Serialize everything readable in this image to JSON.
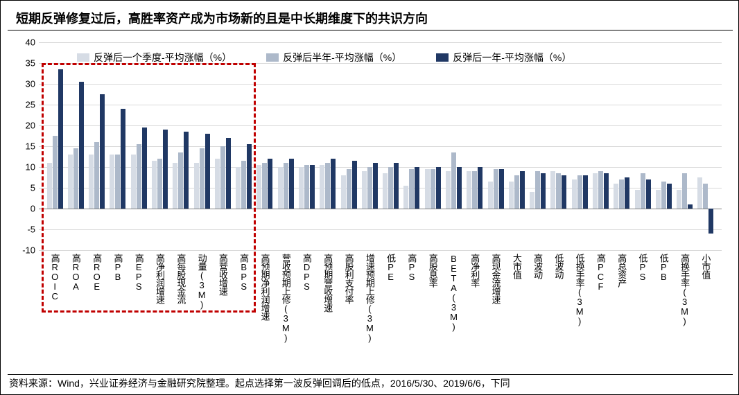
{
  "title": "短期反弹修复过后，高胜率资产成为市场新的且是中长期维度下的共识方向",
  "source": "资料来源：Wind，兴业证券经济与金融研究院整理。起点选择第一波反弹回调后的低点，2016/5/30、2019/6/6，下同",
  "chart": {
    "type": "bar",
    "ylim": [
      -10,
      40
    ],
    "ytick_step": 5,
    "grid_color": "#d9d9d9",
    "background_color": "#ffffff",
    "highlight": {
      "start_idx": 0,
      "end_idx": 9,
      "border_color": "#c00000"
    },
    "series": [
      {
        "name": "反弹后一个季度-平均涨幅（%）",
        "color": "#d6dce5"
      },
      {
        "name": "反弹后半年-平均涨幅（%）",
        "color": "#adb9ca"
      },
      {
        "name": "反弹后一年-平均涨幅（%）",
        "color": "#203864"
      }
    ],
    "categories": [
      "高ROIC",
      "高ROA",
      "高ROE",
      "高PB",
      "高EPS",
      "高净利润增速",
      "高每股现金流",
      "动量(3M)",
      "高营收增速",
      "高BPS",
      "高预期净利润增速",
      "营收预期上修(3M)",
      "高DPS",
      "高预期营收增速",
      "高股利支付率",
      "增速预期上修(3M)",
      "低PE",
      "高PS",
      "高股息率",
      "BETA(3M)",
      "高净利率",
      "高现金流增速",
      "大市值",
      "高波动",
      "低波动",
      "低换手率(3M)",
      "高PCF",
      "高总资产",
      "低PS",
      "低PB",
      "高换手率(3M)",
      "小市值"
    ],
    "values": [
      [
        11.0,
        17.5,
        33.5
      ],
      [
        13.0,
        14.5,
        30.5
      ],
      [
        13.0,
        16.0,
        27.5
      ],
      [
        13.0,
        13.0,
        24.0
      ],
      [
        13.0,
        15.5,
        19.5
      ],
      [
        11.5,
        12.0,
        19.0
      ],
      [
        11.0,
        13.5,
        18.5
      ],
      [
        11.0,
        14.5,
        18.0
      ],
      [
        12.0,
        15.0,
        17.0
      ],
      [
        10.0,
        11.5,
        15.5
      ],
      [
        10.5,
        11.0,
        12.0
      ],
      [
        10.0,
        11.0,
        12.0
      ],
      [
        10.0,
        10.5,
        10.5
      ],
      [
        10.5,
        11.0,
        12.0
      ],
      [
        8.0,
        9.5,
        11.5
      ],
      [
        9.0,
        10.0,
        11.0
      ],
      [
        8.5,
        10.0,
        11.0
      ],
      [
        5.5,
        9.5,
        10.0
      ],
      [
        9.5,
        9.5,
        10.0
      ],
      [
        9.0,
        13.5,
        10.0
      ],
      [
        9.0,
        9.0,
        10.0
      ],
      [
        6.5,
        9.5,
        9.5
      ],
      [
        6.5,
        8.0,
        9.0
      ],
      [
        4.0,
        9.0,
        8.5
      ],
      [
        9.0,
        8.5,
        8.0
      ],
      [
        7.0,
        8.0,
        8.0
      ],
      [
        8.5,
        9.0,
        8.5
      ],
      [
        6.0,
        7.0,
        7.5
      ],
      [
        4.5,
        8.5,
        7.0
      ],
      [
        4.5,
        6.5,
        6.0
      ],
      [
        4.5,
        8.5,
        1.0
      ],
      [
        7.5,
        6.0,
        -6.0
      ]
    ]
  }
}
